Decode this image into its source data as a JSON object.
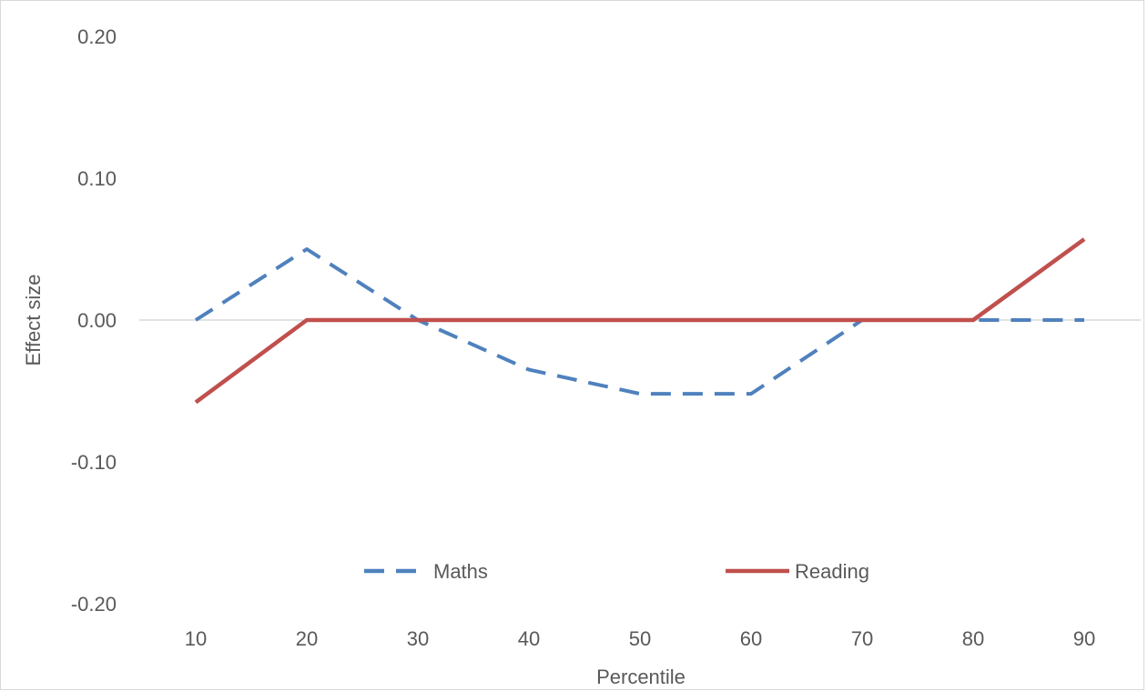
{
  "chart_data": {
    "type": "line",
    "x": [
      10,
      20,
      30,
      40,
      50,
      60,
      70,
      80,
      90
    ],
    "xlabel": "Percentile",
    "ylabel": "Effect size",
    "ylim": [
      -0.2,
      0.2
    ],
    "yticks": [
      "0.20",
      "0.10",
      "0.00",
      "-0.10",
      "-0.20"
    ],
    "grid": false,
    "legend_position": "bottom",
    "series": [
      {
        "name": "Maths",
        "style": "dashed",
        "color": "#4F81BD",
        "values": [
          0.0,
          0.05,
          0.0,
          -0.035,
          -0.052,
          -0.052,
          0.0,
          0.0,
          0.0
        ]
      },
      {
        "name": "Reading",
        "style": "solid",
        "color": "#C0504D",
        "values": [
          -0.058,
          0.0,
          0.0,
          0.0,
          0.0,
          0.0,
          0.0,
          0.0,
          0.057
        ]
      }
    ]
  }
}
